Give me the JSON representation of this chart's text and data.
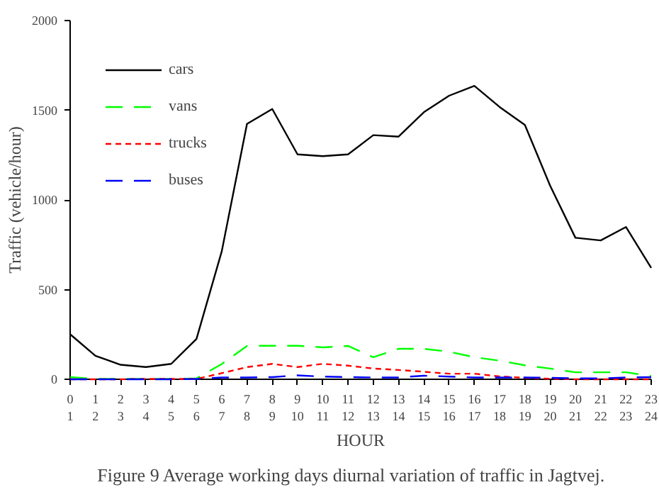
{
  "chart_data": {
    "type": "line",
    "xlabel": "HOUR",
    "ylabel": "Traffic (vehicle/hour)",
    "annotations": [
      "Figure 9     Average working days diurnal variation of traffic in Jagtvej."
    ],
    "categories": [
      "0\n1",
      "1\n2",
      "2\n3",
      "3\n4",
      "4\n5",
      "5\n6",
      "6\n7",
      "7\n8",
      "8\n9",
      "9\n10",
      "10\n11",
      "11\n12",
      "12\n13",
      "13\n14",
      "14\n15",
      "15\n16",
      "16\n17",
      "17\n18",
      "18\n19",
      "19\n20",
      "20\n21",
      "21\n22",
      "22\n23",
      "23\n24"
    ],
    "series": [
      {
        "name": "cars",
        "color": "#000000",
        "line_style": "solid",
        "values": [
          251,
          131,
          81,
          68,
          86,
          225,
          713,
          1424,
          1507,
          1254,
          1244,
          1254,
          1361,
          1353,
          1489,
          1581,
          1636,
          1518,
          1418,
          1079,
          789,
          774,
          849,
          621
        ]
      },
      {
        "name": "vans",
        "color": "#00ff00",
        "line_style": "dashed",
        "values": [
          12,
          2,
          2,
          2,
          2,
          5,
          85,
          186,
          187,
          187,
          178,
          186,
          123,
          170,
          170,
          154,
          123,
          104,
          78,
          60,
          39,
          39,
          39,
          18
        ]
      },
      {
        "name": "trucks",
        "color": "#ff0000",
        "line_style": "dotted",
        "values": [
          0,
          0,
          0,
          2,
          2,
          2,
          34,
          68,
          86,
          68,
          86,
          76,
          60,
          52,
          42,
          31,
          31,
          16,
          8,
          3,
          0,
          0,
          0,
          0
        ]
      },
      {
        "name": "buses",
        "color": "#0000ff",
        "line_style": "dashed",
        "values": [
          0,
          0,
          0,
          0,
          0,
          2,
          10,
          10,
          12,
          22,
          15,
          12,
          10,
          10,
          20,
          15,
          10,
          10,
          10,
          8,
          5,
          5,
          10,
          12
        ]
      }
    ],
    "ylim": [
      0,
      2000
    ],
    "yticks": [
      0,
      500,
      1000,
      1500,
      2000
    ],
    "grid": false,
    "legend": "top left",
    "marker": "none"
  }
}
